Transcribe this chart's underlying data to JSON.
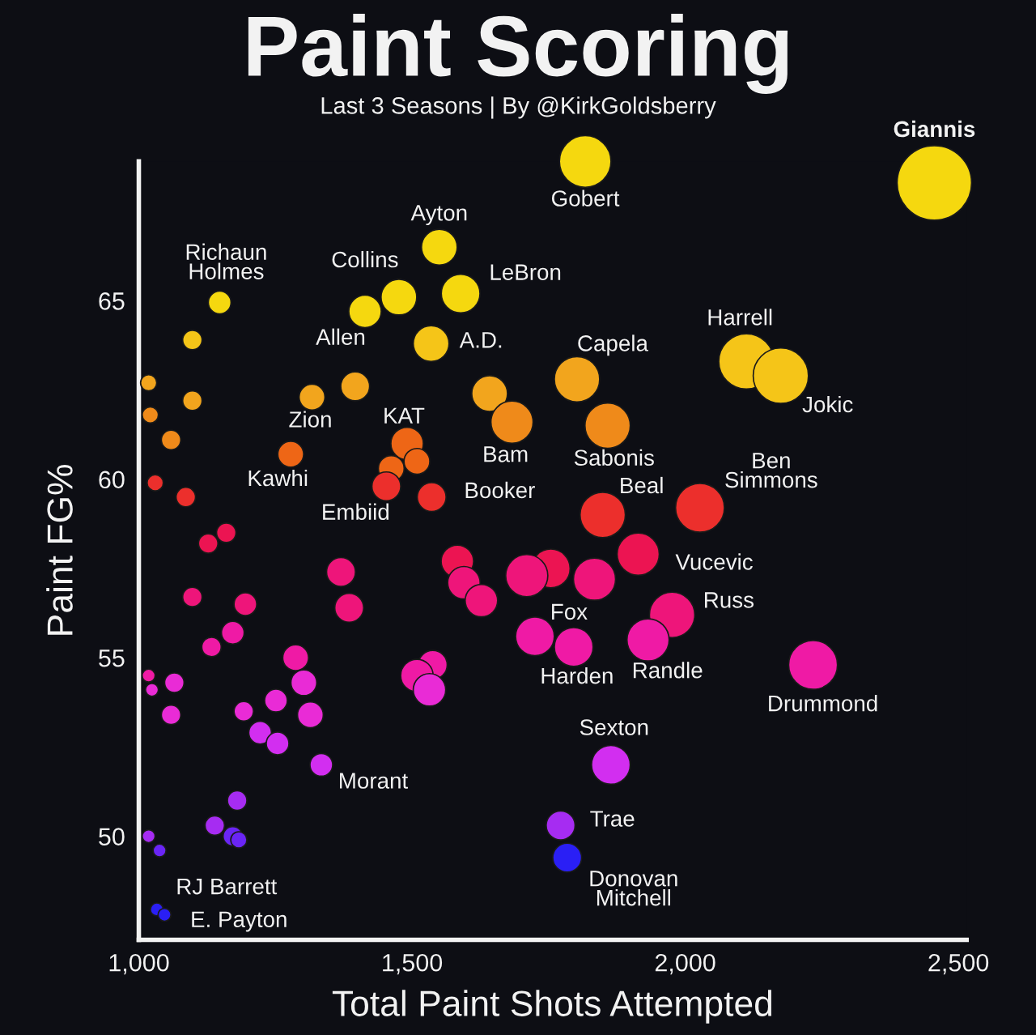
{
  "chart_data": {
    "type": "bubble",
    "title": "Paint Scoring",
    "subtitle": "Last 3 Seasons | By @KirkGoldsberry",
    "xlabel": "Total Paint Shots Attempted",
    "ylabel": "Paint FG%",
    "xlim": [
      1000,
      2515
    ],
    "ylim": [
      47.1,
      68.9
    ],
    "xticks": [
      {
        "value": 1000,
        "label": "1,000"
      },
      {
        "value": 1500,
        "label": "1,500"
      },
      {
        "value": 2000,
        "label": "2,000"
      },
      {
        "value": 2500,
        "label": "2,500"
      }
    ],
    "yticks": [
      50,
      55,
      60,
      65
    ],
    "grid": false,
    "series": [
      {
        "color": "#f5d80f",
        "x": [
          1148,
          1476,
          1414,
          1550,
          1589,
          1817,
          2456
        ],
        "values": [
          64.95,
          65.1,
          64.7,
          66.5,
          65.2,
          68.9,
          68.3
        ],
        "sizes": [
          0.093,
          0.23,
          0.19,
          0.23,
          0.27,
          0.48,
          1
        ]
      },
      {
        "color": "#f5c518",
        "x": [
          1098,
          1535,
          2112,
          2175
        ],
        "values": [
          63.9,
          63.8,
          63.3,
          62.9
        ],
        "sizes": [
          0.068,
          0.23,
          0.55,
          0.55
        ]
      },
      {
        "color": "#f2a51d",
        "x": [
          1018,
          1098,
          1396,
          1317,
          1642,
          1802
        ],
        "values": [
          62.7,
          62.2,
          62.6,
          62.3,
          62.4,
          62.8
        ],
        "sizes": [
          0.047,
          0.068,
          0.15,
          0.12,
          0.23,
          0.37
        ]
      },
      {
        "color": "#ef8a1a",
        "x": [
          1021,
          1059,
          1683,
          1858
        ],
        "values": [
          61.8,
          61.1,
          61.6,
          61.5
        ],
        "sizes": [
          0.047,
          0.068,
          0.32,
          0.37
        ]
      },
      {
        "color": "#ee6616",
        "x": [
          1278,
          1491,
          1509,
          1462
        ],
        "values": [
          60.7,
          61.0,
          60.5,
          60.3
        ],
        "sizes": [
          0.12,
          0.19,
          0.12,
          0.12
        ]
      },
      {
        "color": "#ec2f2c",
        "x": [
          1030,
          1086,
          1453,
          1536,
          2027,
          1849
        ],
        "values": [
          59.9,
          59.5,
          59.8,
          59.5,
          59.2,
          59.0
        ],
        "sizes": [
          0.047,
          0.068,
          0.15,
          0.15,
          0.43,
          0.37
        ]
      },
      {
        "color": "#ec1452",
        "x": [
          1127,
          1160,
          1914,
          1583,
          1754
        ],
        "values": [
          58.2,
          58.5,
          57.9,
          57.7,
          57.5
        ],
        "sizes": [
          0.068,
          0.068,
          0.32,
          0.19,
          0.27
        ]
      },
      {
        "color": "#ee157a",
        "x": [
          1710,
          1834,
          1595,
          1627,
          1370,
          1385,
          1098,
          1195,
          1976
        ],
        "values": [
          57.3,
          57.2,
          57.1,
          56.6,
          57.4,
          56.4,
          56.7,
          56.5,
          56.2
        ],
        "sizes": [
          0.32,
          0.32,
          0.19,
          0.19,
          0.15,
          0.15,
          0.068,
          0.093,
          0.37
        ]
      },
      {
        "color": "#ef1aa5",
        "x": [
          1172,
          1133,
          1932,
          1796,
          1725,
          2234,
          1287,
          1538,
          1509,
          1018
        ],
        "values": [
          55.7,
          55.3,
          55.5,
          55.3,
          55.6,
          54.8,
          55.0,
          54.8,
          54.5,
          54.5
        ],
        "sizes": [
          0.093,
          0.068,
          0.32,
          0.27,
          0.27,
          0.43,
          0.12,
          0.15,
          0.19,
          0.03
        ]
      },
      {
        "color": "#e92bd6",
        "x": [
          1302,
          1251,
          1314,
          1192,
          1532,
          1024,
          1065,
          1059
        ],
        "values": [
          54.3,
          53.8,
          53.4,
          53.5,
          54.1,
          54.1,
          54.3,
          53.4
        ],
        "sizes": [
          0.12,
          0.093,
          0.12,
          0.068,
          0.19,
          0.03,
          0.068,
          0.068
        ]
      },
      {
        "color": "#d22ef0",
        "x": [
          1222,
          1254,
          1334,
          1864
        ],
        "values": [
          52.9,
          52.6,
          52.0,
          52.0
        ],
        "sizes": [
          0.093,
          0.093,
          0.093,
          0.27
        ]
      },
      {
        "color": "#a62cf2",
        "x": [
          1180,
          1139,
          1772,
          1018
        ],
        "values": [
          51.0,
          50.3,
          50.3,
          50.0
        ],
        "sizes": [
          0.068,
          0.068,
          0.15,
          0.03
        ]
      },
      {
        "color": "#6a25f5",
        "x": [
          1172,
          1183,
          1038
        ],
        "values": [
          50.0,
          49.9,
          49.6
        ],
        "sizes": [
          0.068,
          0.047,
          0.03
        ]
      },
      {
        "color": "#2a1ff5",
        "x": [
          1784,
          1033,
          1047
        ],
        "values": [
          49.4,
          47.95,
          47.8
        ],
        "sizes": [
          0.15,
          0.03,
          0.03
        ]
      }
    ],
    "annotations": [
      {
        "text": "Giannis",
        "x": 2456,
        "y": 68.3
      },
      {
        "text": "Gobert",
        "x": 1817,
        "y": 68.9
      },
      {
        "text": "Ayton",
        "x": 1550,
        "y": 66.5
      },
      {
        "text": "Richaun\nHolmes",
        "x": 1148,
        "y": 64.95
      },
      {
        "text": "Collins",
        "x": 1476,
        "y": 65.1
      },
      {
        "text": "LeBron",
        "x": 1589,
        "y": 65.2
      },
      {
        "text": "Allen",
        "x": 1414,
        "y": 64.7
      },
      {
        "text": "A.D.",
        "x": 1535,
        "y": 63.8
      },
      {
        "text": "Capela",
        "x": 1802,
        "y": 62.8
      },
      {
        "text": "Harrell",
        "x": 2112,
        "y": 63.3
      },
      {
        "text": "Jokic",
        "x": 2175,
        "y": 62.9
      },
      {
        "text": "Zion",
        "x": 1317,
        "y": 62.3
      },
      {
        "text": "KAT",
        "x": 1491,
        "y": 61.0
      },
      {
        "text": "Bam",
        "x": 1683,
        "y": 61.6
      },
      {
        "text": "Sabonis",
        "x": 1858,
        "y": 61.5
      },
      {
        "text": "Kawhi",
        "x": 1278,
        "y": 60.7
      },
      {
        "text": "Booker",
        "x": 1536,
        "y": 59.5
      },
      {
        "text": "Embiid",
        "x": 1453,
        "y": 59.8
      },
      {
        "text": "Beal",
        "x": 1849,
        "y": 59.0
      },
      {
        "text": "Ben\nSimmons",
        "x": 2027,
        "y": 59.2
      },
      {
        "text": "Vucevic",
        "x": 1914,
        "y": 57.9
      },
      {
        "text": "Russ",
        "x": 1976,
        "y": 56.2
      },
      {
        "text": "Fox",
        "x": 1725,
        "y": 55.6
      },
      {
        "text": "Harden",
        "x": 1796,
        "y": 55.3
      },
      {
        "text": "Randle",
        "x": 1932,
        "y": 55.5
      },
      {
        "text": "Drummond",
        "x": 2234,
        "y": 54.8
      },
      {
        "text": "Sexton",
        "x": 1864,
        "y": 52.0
      },
      {
        "text": "Morant",
        "x": 1334,
        "y": 52.0
      },
      {
        "text": "Trae",
        "x": 1772,
        "y": 50.3
      },
      {
        "text": "Donovan\nMitchell",
        "x": 1784,
        "y": 49.4
      },
      {
        "text": "RJ Barrett",
        "x": 1033,
        "y": 47.95
      },
      {
        "text": "E. Payton",
        "x": 1047,
        "y": 47.8
      }
    ]
  }
}
